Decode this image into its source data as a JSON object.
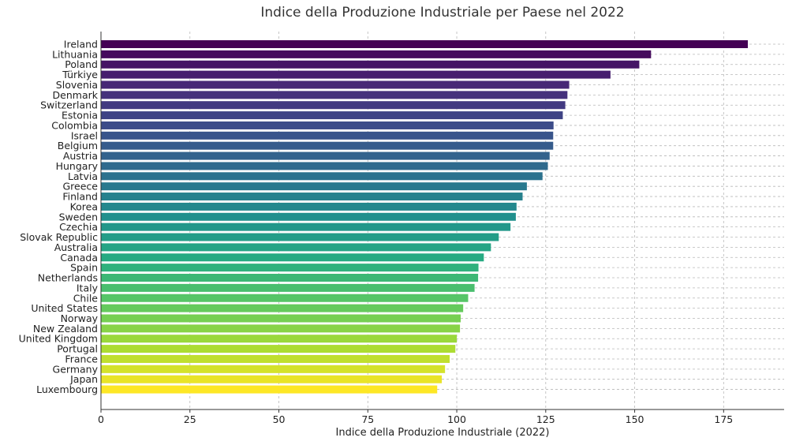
{
  "chart_data": {
    "type": "bar",
    "orientation": "horizontal",
    "title": "Indice della Produzione Industriale per Paese nel 2022",
    "xlabel": "Indice della Produzione Industriale (2022)",
    "ylabel": "",
    "xlim": [
      0,
      192
    ],
    "xticks": [
      0,
      25,
      50,
      75,
      100,
      125,
      150,
      175
    ],
    "grid": true,
    "colormap": "viridis",
    "categories": [
      "Ireland",
      "Lithuania",
      "Poland",
      "Türkiye",
      "Slovenia",
      "Denmark",
      "Switzerland",
      "Estonia",
      "Colombia",
      "Israel",
      "Belgium",
      "Austria",
      "Hungary",
      "Latvia",
      "Greece",
      "Finland",
      "Korea",
      "Sweden",
      "Czechia",
      "Slovak Republic",
      "Australia",
      "Canada",
      "Spain",
      "Netherlands",
      "Italy",
      "Chile",
      "United States",
      "Norway",
      "New Zealand",
      "United Kingdom",
      "Portugal",
      "France",
      "Germany",
      "Japan",
      "Luxembourg"
    ],
    "values": [
      181.8,
      154.6,
      151.3,
      143.2,
      131.6,
      131.1,
      130.5,
      129.8,
      127.2,
      127.1,
      127.1,
      126.1,
      125.6,
      124.1,
      119.7,
      118.5,
      116.8,
      116.6,
      115.1,
      111.8,
      109.6,
      107.6,
      106.1,
      106.0,
      105.0,
      103.2,
      101.8,
      101.1,
      100.9,
      100.0,
      99.6,
      98.0,
      96.7,
      95.8,
      94.5
    ]
  }
}
